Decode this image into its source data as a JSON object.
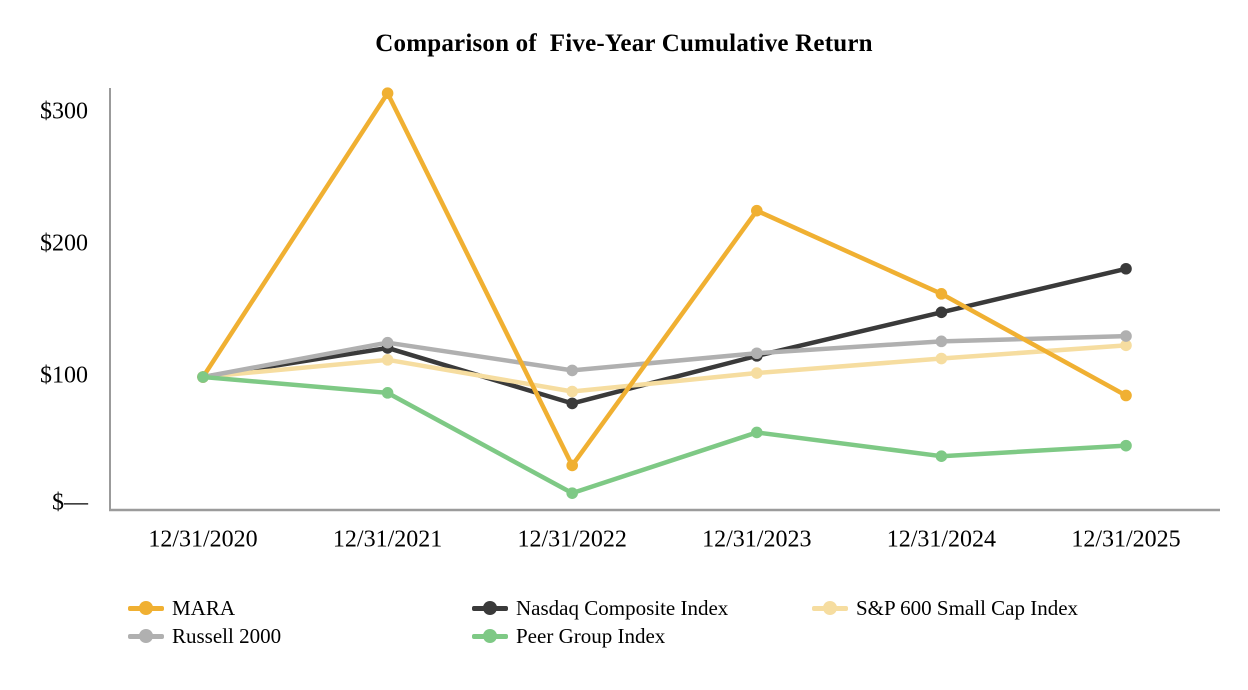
{
  "title": "Comparison of  Five-Year Cumulative Return",
  "chart_data": {
    "type": "line",
    "x": [
      "12/31/2020",
      "12/31/2021",
      "12/31/2022",
      "12/31/2023",
      "12/31/2024",
      "12/31/2025"
    ],
    "series": [
      {
        "name": "MARA",
        "color": "#F0B032",
        "values": [
          100,
          315,
          33,
          226,
          163,
          86
        ]
      },
      {
        "name": "Nasdaq Composite Index",
        "color": "#3A3A3A",
        "values": [
          100,
          122,
          80,
          116,
          149,
          182
        ]
      },
      {
        "name": "S&P 600 Small Cap Index",
        "color": "#F6DDA0",
        "values": [
          100,
          113,
          89,
          103,
          114,
          124
        ]
      },
      {
        "name": "Russell 2000",
        "color": "#B0B0B0",
        "values": [
          100,
          126,
          105,
          118,
          127,
          131
        ]
      },
      {
        "name": "Peer Group Index",
        "color": "#7EC985",
        "values": [
          100,
          88,
          12,
          58,
          40,
          48
        ]
      }
    ],
    "y_axis": {
      "ticks": [
        {
          "label": "$—",
          "value": 0
        },
        {
          "label": "$100",
          "value": 100
        },
        {
          "label": "$200",
          "value": 200
        },
        {
          "label": "$300",
          "value": 300
        }
      ]
    },
    "title": "Comparison of  Five-Year Cumulative Return",
    "xlabel": "",
    "ylabel": "",
    "ylim": [
      0,
      320
    ],
    "grid": false,
    "legend_position": "bottom",
    "axis_color": "#9B9B9B"
  }
}
